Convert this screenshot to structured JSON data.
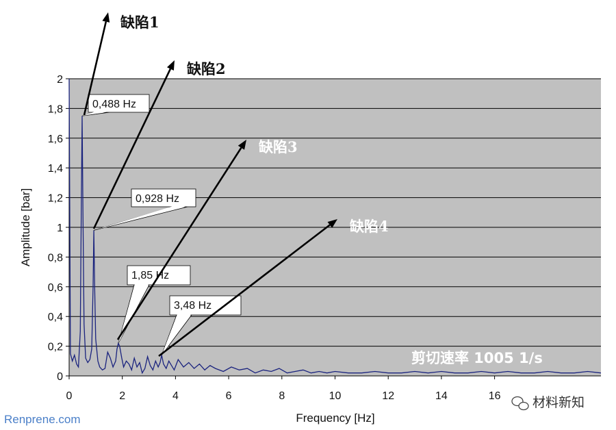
{
  "chart_data": {
    "type": "line",
    "title": "",
    "xlabel": "Frequency [Hz]",
    "ylabel": "Amplitude [bar]",
    "xlim": [
      0,
      20
    ],
    "ylim": [
      0,
      2
    ],
    "x_ticks": [
      "0",
      "2",
      "4",
      "6",
      "8",
      "10",
      "12",
      "14",
      "16"
    ],
    "y_ticks": [
      "0",
      "0,2",
      "0,4",
      "0,6",
      "0,8",
      "1",
      "1,2",
      "1,4",
      "1,6",
      "1,8",
      "2"
    ],
    "grid": true,
    "plot_background": "#c0c0c0",
    "line_color": "#1a237e",
    "series": [
      {
        "x": [
          0.0,
          0.05,
          0.12,
          0.2,
          0.28,
          0.35,
          0.42,
          0.46,
          0.488,
          0.52,
          0.56,
          0.62,
          0.7,
          0.78,
          0.85,
          0.9,
          0.928,
          0.96,
          1.0,
          1.08,
          1.15,
          1.25,
          1.35,
          1.45,
          1.55,
          1.65,
          1.75,
          1.8,
          1.85,
          1.9,
          1.98,
          2.05,
          2.15,
          2.25,
          2.35,
          2.45,
          2.55,
          2.65,
          2.75,
          2.85,
          2.95,
          3.05,
          3.15,
          3.25,
          3.35,
          3.42,
          3.48,
          3.55,
          3.65,
          3.75,
          3.85,
          3.95,
          4.1,
          4.3,
          4.5,
          4.7,
          4.9,
          5.1,
          5.3,
          5.5,
          5.8,
          6.1,
          6.4,
          6.7,
          7.0,
          7.3,
          7.6,
          7.9,
          8.2,
          8.5,
          8.8,
          9.1,
          9.4,
          9.7,
          10.0,
          10.5,
          11.0,
          11.5,
          12.0,
          12.5,
          13.0,
          13.5,
          14.0,
          14.5,
          15.0,
          15.5,
          16.0,
          16.5,
          17.0,
          17.5,
          18.0,
          18.5,
          19.0,
          19.5,
          20.0
        ],
        "y": [
          2.0,
          0.15,
          0.1,
          0.14,
          0.08,
          0.06,
          0.3,
          1.2,
          1.75,
          1.1,
          0.35,
          0.12,
          0.09,
          0.11,
          0.18,
          0.6,
          0.98,
          0.6,
          0.25,
          0.1,
          0.06,
          0.04,
          0.05,
          0.16,
          0.12,
          0.06,
          0.1,
          0.18,
          0.22,
          0.2,
          0.12,
          0.06,
          0.1,
          0.08,
          0.04,
          0.12,
          0.06,
          0.09,
          0.02,
          0.05,
          0.13,
          0.07,
          0.04,
          0.1,
          0.06,
          0.09,
          0.14,
          0.08,
          0.05,
          0.1,
          0.07,
          0.04,
          0.11,
          0.06,
          0.09,
          0.05,
          0.08,
          0.04,
          0.07,
          0.05,
          0.03,
          0.06,
          0.04,
          0.05,
          0.02,
          0.04,
          0.03,
          0.05,
          0.02,
          0.03,
          0.04,
          0.02,
          0.03,
          0.02,
          0.03,
          0.02,
          0.02,
          0.03,
          0.02,
          0.02,
          0.03,
          0.02,
          0.03,
          0.02,
          0.02,
          0.03,
          0.02,
          0.03,
          0.02,
          0.02,
          0.03,
          0.02,
          0.02,
          0.03,
          0.02
        ]
      }
    ],
    "annotations": [
      {
        "text": "0,488 Hz",
        "x": 0.488,
        "y": 1.75
      },
      {
        "text": "0,928 Hz",
        "x": 0.928,
        "y": 0.98
      },
      {
        "text": "1,85 Hz",
        "x": 1.85,
        "y": 0.22
      },
      {
        "text": "3,48 Hz",
        "x": 3.48,
        "y": 0.14
      }
    ],
    "defects": [
      {
        "text": "缺陷1",
        "color": "#111111"
      },
      {
        "text": "缺陷2",
        "color": "#111111"
      },
      {
        "text": "缺陷3",
        "color": "#ffffff"
      },
      {
        "text": "缺陷4",
        "color": "#ffffff"
      }
    ],
    "rate_label": "剪切速率 1005 1/s"
  },
  "watermarks": {
    "left": "Renprene.com",
    "right": "材料新知"
  }
}
